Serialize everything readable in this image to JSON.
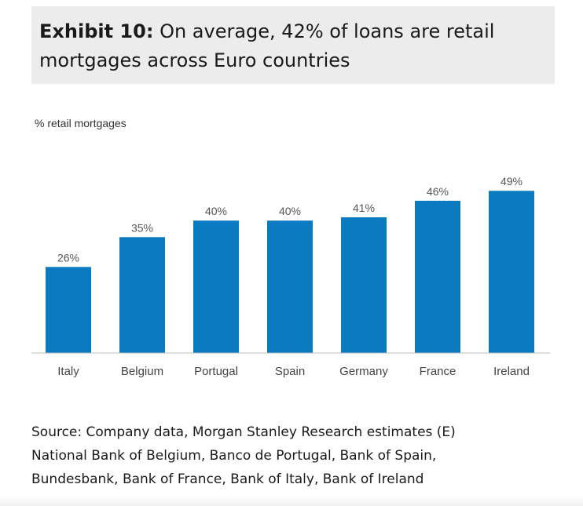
{
  "header": {
    "exhibit_label": "Exhibit 10:",
    "title": "On average, 42% of loans are retail mortgages across Euro countries"
  },
  "chart_data": {
    "type": "bar",
    "title": "",
    "ylabel": "% retail mortgages",
    "xlabel": "",
    "categories": [
      "Italy",
      "Belgium",
      "Portugal",
      "Spain",
      "Germany",
      "France",
      "Ireland"
    ],
    "values": [
      26,
      35,
      40,
      40,
      41,
      46,
      49
    ],
    "data_labels": [
      "26%",
      "35%",
      "40%",
      "40%",
      "41%",
      "46%",
      "49%"
    ],
    "ylim": [
      0,
      55
    ],
    "grid": false,
    "bar_color": "#0a7bc1"
  },
  "source": {
    "lines": [
      "Source: Company data, Morgan Stanley Research estimates (E)",
      "National Bank of Belgium, Banco de Portugal, Bank of Spain,",
      "Bundesbank, Bank of France, Bank of Italy, Bank of Ireland"
    ]
  }
}
